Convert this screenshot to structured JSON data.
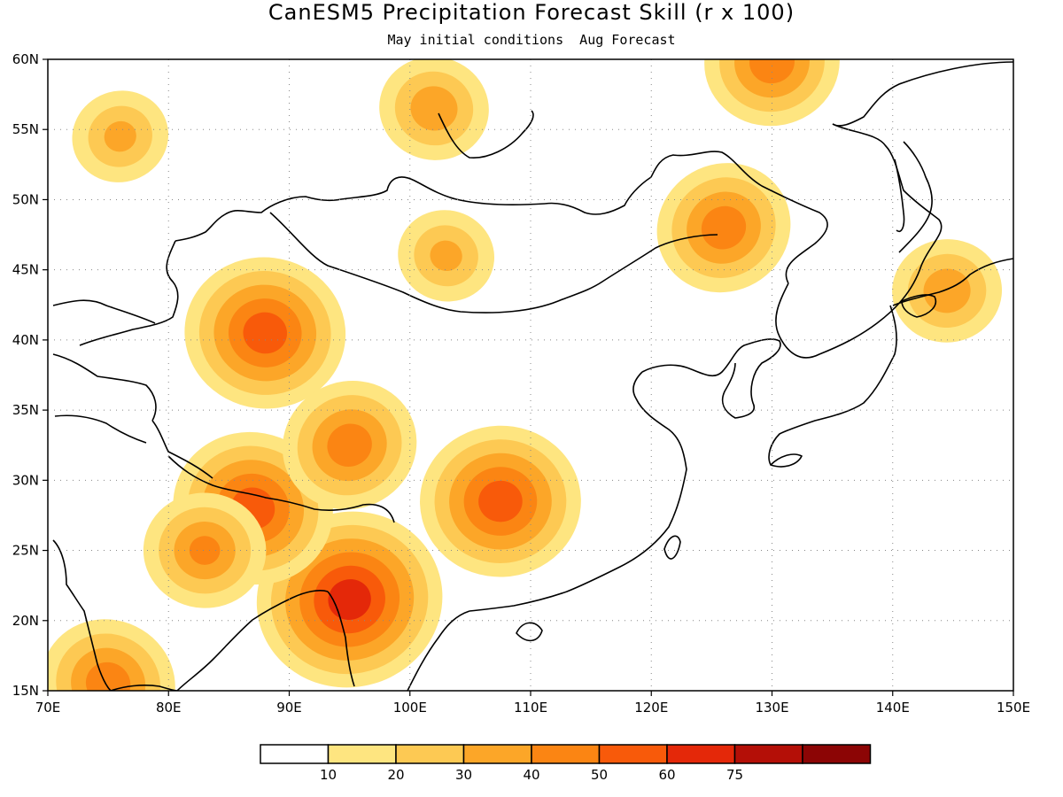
{
  "title": "CanESM5 Precipitation Forecast Skill (r x 100)",
  "subtitle": "May initial conditions  Aug Forecast",
  "map": {
    "lon_range": [
      70,
      150
    ],
    "lat_range": [
      15,
      60
    ],
    "lon_ticks": [
      {
        "value": 70,
        "label": "70E"
      },
      {
        "value": 80,
        "label": "80E"
      },
      {
        "value": 90,
        "label": "90E"
      },
      {
        "value": 100,
        "label": "100E"
      },
      {
        "value": 110,
        "label": "110E"
      },
      {
        "value": 120,
        "label": "120E"
      },
      {
        "value": 130,
        "label": "130E"
      },
      {
        "value": 140,
        "label": "140E"
      },
      {
        "value": 150,
        "label": "150E"
      }
    ],
    "lat_ticks": [
      {
        "value": 15,
        "label": "15N"
      },
      {
        "value": 20,
        "label": "20N"
      },
      {
        "value": 25,
        "label": "25N"
      },
      {
        "value": 30,
        "label": "30N"
      },
      {
        "value": 35,
        "label": "35N"
      },
      {
        "value": 40,
        "label": "40N"
      },
      {
        "value": 45,
        "label": "45N"
      },
      {
        "value": 50,
        "label": "50N"
      },
      {
        "value": 55,
        "label": "55N"
      },
      {
        "value": 60,
        "label": "60N"
      }
    ],
    "grid": "dotted"
  },
  "colors": {
    "levels": [
      "#ffffff",
      "#fee580",
      "#fdc953",
      "#fca628",
      "#fb8513",
      "#f85a0a",
      "#e42809",
      "#b40f07",
      "#8c0505"
    ]
  },
  "legend": {
    "labels": [
      "10",
      "20",
      "30",
      "40",
      "50",
      "60",
      "75"
    ]
  },
  "chart_data": {
    "type": "heatmap",
    "title": "CanESM5 Precipitation Forecast Skill (r x 100)",
    "subtitle": "May initial conditions  Aug Forecast",
    "xlim": [
      70,
      150
    ],
    "ylim": [
      15,
      60
    ],
    "contour_levels": [
      10,
      20,
      30,
      40,
      50,
      60,
      75
    ],
    "regions": [
      {
        "name": "",
        "lon": 126,
        "lat": 48,
        "peak": 45
      },
      {
        "name": "",
        "lon": 88,
        "lat": 40.5,
        "peak": 55
      },
      {
        "name": "",
        "lon": 95,
        "lat": 21.5,
        "peak": 65
      },
      {
        "name": "",
        "lon": 87,
        "lat": 28,
        "peak": 55
      },
      {
        "name": "",
        "lon": 107.5,
        "lat": 28.5,
        "peak": 55
      },
      {
        "name": "",
        "lon": 95,
        "lat": 32.5,
        "peak": 45
      },
      {
        "name": "",
        "lon": 102,
        "lat": 56.5,
        "peak": 35
      },
      {
        "name": "",
        "lon": 130,
        "lat": 59.8,
        "peak": 45
      },
      {
        "name": "",
        "lon": 75,
        "lat": 15.5,
        "peak": 45
      },
      {
        "name": "",
        "lon": 83,
        "lat": 25,
        "peak": 40
      },
      {
        "name": "",
        "lon": 76,
        "lat": 54.5,
        "peak": 30
      },
      {
        "name": "",
        "lon": 103,
        "lat": 46,
        "peak": 30
      },
      {
        "name": "",
        "lon": 144.5,
        "lat": 43.5,
        "peak": 35
      }
    ]
  }
}
